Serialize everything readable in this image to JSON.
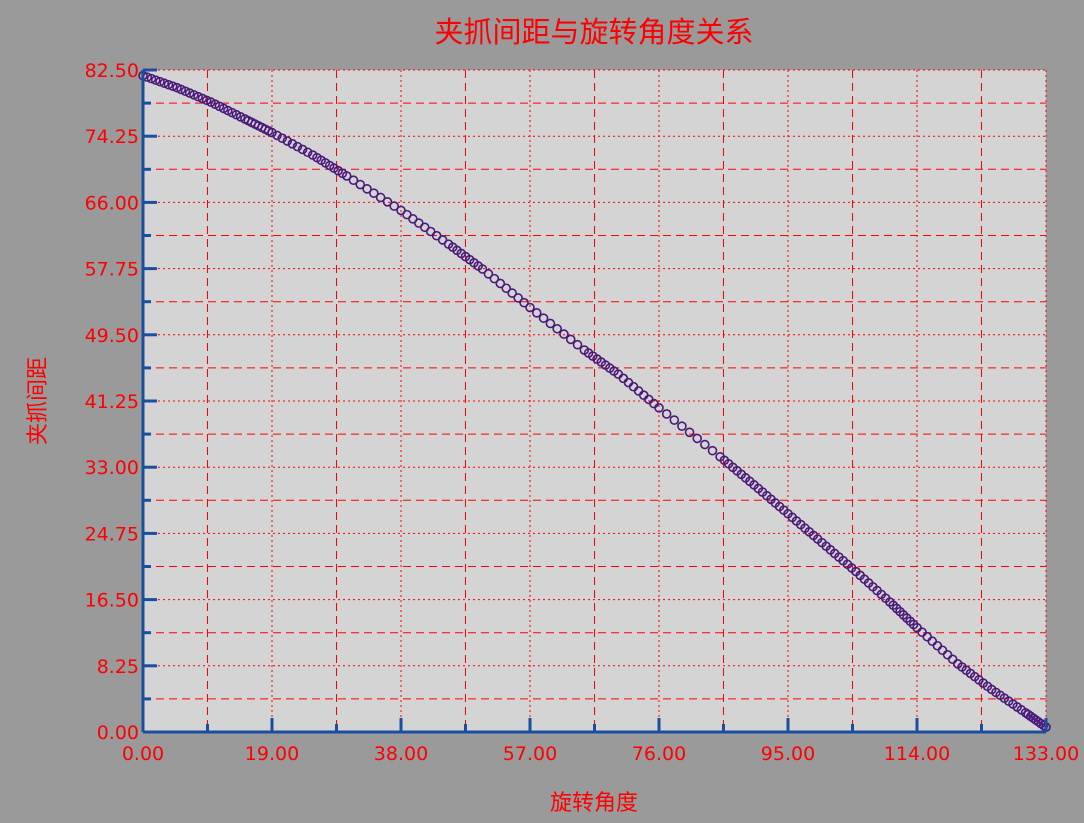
{
  "colors": {
    "background": "#9a9a9a",
    "plot_area": "#d4d4d4",
    "text": "#ff0000",
    "grid": "#ff0000",
    "axis": "#1a4fa0",
    "series": "#4a1a7a"
  },
  "chart_data": {
    "type": "scatter",
    "title": "夹抓间距与旋转角度关系",
    "xlabel": "旋转角度",
    "ylabel": "夹抓间距",
    "xlim": [
      0,
      133
    ],
    "ylim": [
      0,
      82.5
    ],
    "x_ticks": [
      "0.00",
      "19.00",
      "38.00",
      "57.00",
      "76.00",
      "95.00",
      "114.00",
      "133.00"
    ],
    "y_ticks": [
      "0.00",
      "8.25",
      "16.50",
      "24.75",
      "33.00",
      "41.25",
      "49.50",
      "57.75",
      "66.00",
      "74.25",
      "82.50"
    ],
    "grid": true,
    "legend": "none",
    "marker": "open-circle",
    "series": [
      {
        "x": [
          0,
          5,
          10,
          15,
          19,
          25,
          30,
          38,
          45,
          50,
          57,
          65,
          70,
          76,
          85,
          90,
          95,
          100,
          105,
          110,
          114,
          120,
          125,
          130,
          133
        ],
        "y": [
          81.8,
          80.3,
          78.5,
          76.4,
          74.7,
          71.9,
          69.3,
          65.0,
          60.8,
          57.7,
          52.9,
          47.6,
          44.6,
          40.4,
          34.3,
          30.8,
          27.2,
          23.6,
          20.0,
          16.2,
          13.0,
          8.5,
          5.3,
          2.4,
          0.6
        ]
      }
    ]
  }
}
